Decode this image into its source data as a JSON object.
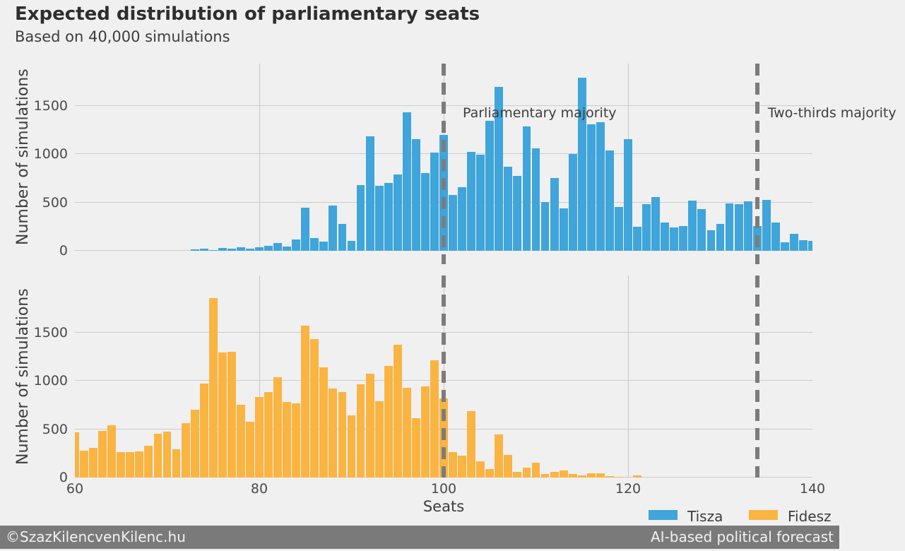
{
  "header": {
    "title": "Expected distribution of parliamentary seats",
    "subtitle": "Based on 40,000 simulations"
  },
  "axes": {
    "xlabel": "Seats",
    "ylabel": "Number of simulations",
    "xticks": [
      60,
      80,
      100,
      120,
      140
    ],
    "yticks": [
      0,
      500,
      1000,
      1500
    ]
  },
  "annotations": [
    {
      "label": "Parliamentary majority",
      "seat": 100
    },
    {
      "label": "Two-thirds majority",
      "seat": 134
    }
  ],
  "legend": [
    {
      "label": "Tisza",
      "color": "#3fa5da"
    },
    {
      "label": "Fidesz",
      "color": "#fab442"
    }
  ],
  "footer": {
    "left": "©SzazKilencvenKilenc.hu",
    "right": "AI-based political forecast"
  },
  "chart_data": [
    {
      "type": "bar",
      "series": "Tisza",
      "panel": "top",
      "color": "#3fa5da",
      "xlabel": "Seats",
      "ylabel": "Number of simulations",
      "xlim": [
        60,
        140
      ],
      "ylim": [
        0,
        1930
      ],
      "yticks": [
        0,
        500,
        1000,
        1500
      ],
      "bin_width": 1,
      "seats": [
        73,
        74,
        75,
        76,
        77,
        78,
        79,
        80,
        81,
        82,
        83,
        84,
        85,
        86,
        87,
        88,
        89,
        90,
        91,
        92,
        93,
        94,
        95,
        96,
        97,
        98,
        99,
        100,
        101,
        102,
        103,
        104,
        105,
        106,
        107,
        108,
        109,
        110,
        111,
        112,
        113,
        114,
        115,
        116,
        117,
        118,
        119,
        120,
        121,
        122,
        123,
        124,
        125,
        126,
        127,
        128,
        129,
        130,
        131,
        132,
        133,
        134,
        135,
        136,
        137,
        138,
        139,
        140
      ],
      "values": [
        15,
        20,
        10,
        30,
        25,
        40,
        25,
        35,
        50,
        80,
        45,
        120,
        445,
        135,
        95,
        470,
        280,
        100,
        680,
        1185,
        670,
        700,
        790,
        1430,
        1155,
        805,
        1015,
        1200,
        580,
        655,
        1025,
        990,
        1345,
        1690,
        870,
        775,
        1285,
        1060,
        505,
        755,
        440,
        1000,
        1785,
        1305,
        1330,
        1035,
        450,
        1150,
        250,
        480,
        555,
        295,
        240,
        255,
        515,
        430,
        210,
        280,
        490,
        480,
        510,
        255,
        525,
        290,
        85,
        175,
        110,
        100
      ]
    },
    {
      "type": "bar",
      "series": "Fidesz",
      "panel": "bottom",
      "color": "#fab442",
      "xlabel": "Seats",
      "ylabel": "Number of simulations",
      "xlim": [
        60,
        140
      ],
      "ylim": [
        0,
        2085
      ],
      "yticks": [
        0,
        500,
        1000,
        1500
      ],
      "bin_width": 1,
      "seats": [
        60,
        61,
        62,
        63,
        64,
        65,
        66,
        67,
        68,
        69,
        70,
        71,
        72,
        73,
        74,
        75,
        76,
        77,
        78,
        79,
        80,
        81,
        82,
        83,
        84,
        85,
        86,
        87,
        88,
        89,
        90,
        91,
        92,
        93,
        94,
        95,
        96,
        97,
        98,
        99,
        100,
        101,
        102,
        103,
        104,
        105,
        106,
        107,
        108,
        109,
        110,
        111,
        112,
        113,
        114,
        115,
        116,
        117,
        118,
        119,
        120,
        121
      ],
      "values": [
        470,
        280,
        310,
        480,
        540,
        260,
        265,
        270,
        325,
        455,
        475,
        290,
        560,
        700,
        970,
        1855,
        1290,
        1300,
        750,
        580,
        830,
        885,
        1035,
        780,
        765,
        1570,
        1430,
        1140,
        920,
        880,
        645,
        965,
        1075,
        785,
        1150,
        1370,
        930,
        610,
        945,
        1210,
        820,
        260,
        225,
        685,
        165,
        90,
        445,
        230,
        55,
        105,
        155,
        35,
        55,
        70,
        40,
        25,
        45,
        45,
        15,
        5,
        0,
        20
      ]
    }
  ]
}
